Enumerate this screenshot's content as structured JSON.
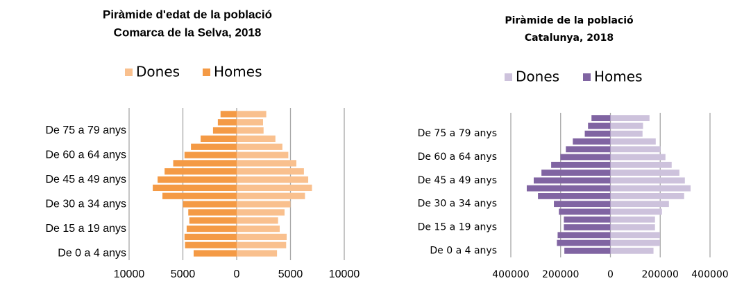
{
  "chart_data": [
    {
      "type": "pyramid",
      "title": "Piràmide d'edat de la població",
      "subtitle": "Comarca de la Selva, 2018",
      "categories": [
        "De 0 a 4 anys",
        null,
        null,
        "De 15 a 19 anys",
        null,
        null,
        "De 30 a 34 anys",
        null,
        null,
        "De 45 a 49 anys",
        null,
        null,
        "De 60 a 64 anys",
        null,
        null,
        "De 75 a 79 anys",
        null,
        null
      ],
      "series": [
        {
          "name": "Dones",
          "color": "#f9c08e",
          "values": [
            3750,
            4600,
            4650,
            4000,
            3850,
            4450,
            5000,
            6350,
            7000,
            6650,
            6250,
            5550,
            4800,
            4250,
            3600,
            2500,
            2450,
            2750
          ]
        },
        {
          "name": "Homes",
          "color": "#f49a45",
          "values": [
            -4000,
            -4800,
            -4850,
            -4650,
            -4400,
            -4500,
            -5000,
            -6900,
            -7800,
            -7350,
            -6700,
            -5900,
            -4850,
            -4250,
            -3350,
            -2200,
            -1750,
            -1500
          ]
        }
      ],
      "xlim": [
        -10000,
        10000
      ],
      "xticks": [
        {
          "value": -10000,
          "label": "10000"
        },
        {
          "value": -5000,
          "label": "5000"
        },
        0,
        5000,
        10000
      ],
      "grid": true,
      "legend": "top"
    },
    {
      "type": "pyramid",
      "title": "Piràmide de la població",
      "subtitle": "Catalunya, 2018",
      "categories": [
        "De 0 a 4 anys",
        null,
        null,
        "De 15 a 19 anys",
        null,
        null,
        "De 30 a 34 anys",
        null,
        null,
        "De 45 a 49 anys",
        null,
        null,
        "De 60 a 64 anys",
        null,
        null,
        "De 75 a 79 anys",
        null,
        null
      ],
      "series": [
        {
          "name": "Dones",
          "color": "#cdc2dc",
          "values": [
            173000,
            199000,
            199000,
            179000,
            179000,
            207000,
            235000,
            296000,
            322000,
            299000,
            277000,
            246000,
            221000,
            201000,
            182000,
            129000,
            131000,
            157000
          ]
        },
        {
          "name": "Homes",
          "color": "#8064a2",
          "values": [
            -185000,
            -215000,
            -212000,
            -187000,
            -187000,
            -207000,
            -227000,
            -291000,
            -336000,
            -308000,
            -277000,
            -238000,
            -201000,
            -179000,
            -151000,
            -103000,
            -90000,
            -76000
          ]
        }
      ],
      "xlim": [
        -400000,
        400000
      ],
      "xticks": [
        {
          "value": -400000,
          "label": "400000"
        },
        {
          "value": -200000,
          "label": "200000"
        },
        0,
        200000,
        400000
      ],
      "grid": true,
      "legend": "top"
    }
  ]
}
